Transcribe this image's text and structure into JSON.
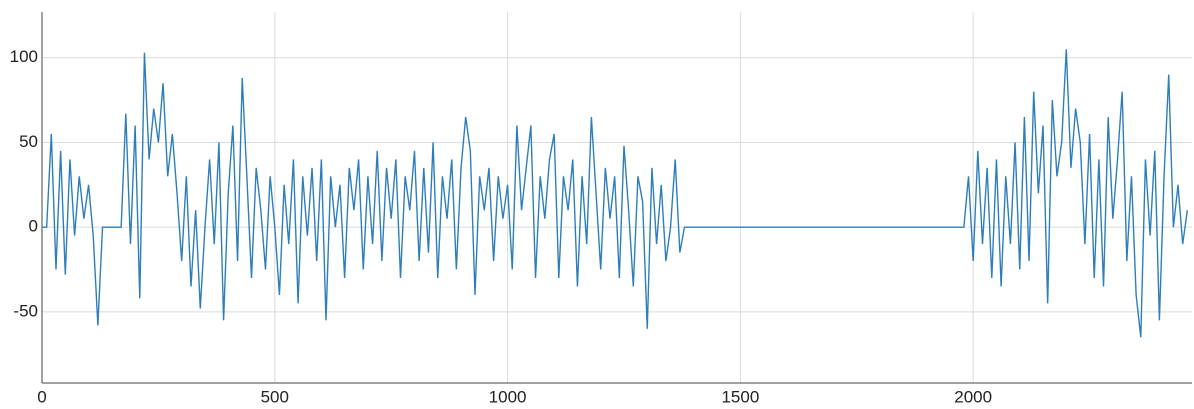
{
  "chart_data": {
    "type": "line",
    "x": [
      0,
      10,
      20,
      30,
      40,
      50,
      60,
      70,
      80,
      90,
      100,
      110,
      120,
      130,
      140,
      150,
      160,
      170,
      180,
      190,
      200,
      210,
      220,
      230,
      240,
      250,
      260,
      270,
      280,
      290,
      300,
      310,
      320,
      330,
      340,
      350,
      360,
      370,
      380,
      390,
      400,
      410,
      420,
      430,
      440,
      450,
      460,
      470,
      480,
      490,
      500,
      510,
      520,
      530,
      540,
      550,
      560,
      570,
      580,
      590,
      600,
      610,
      620,
      630,
      640,
      650,
      660,
      670,
      680,
      690,
      700,
      710,
      720,
      730,
      740,
      750,
      760,
      770,
      780,
      790,
      800,
      810,
      820,
      830,
      840,
      850,
      860,
      870,
      880,
      890,
      900,
      910,
      920,
      930,
      940,
      950,
      960,
      970,
      980,
      990,
      1000,
      1010,
      1020,
      1030,
      1040,
      1050,
      1060,
      1070,
      1080,
      1090,
      1100,
      1110,
      1120,
      1130,
      1140,
      1150,
      1160,
      1170,
      1180,
      1190,
      1200,
      1210,
      1220,
      1230,
      1240,
      1250,
      1260,
      1270,
      1280,
      1290,
      1300,
      1310,
      1320,
      1330,
      1340,
      1350,
      1360,
      1370,
      1380,
      1500,
      1700,
      1980,
      1990,
      2000,
      2010,
      2020,
      2030,
      2040,
      2050,
      2060,
      2070,
      2080,
      2090,
      2100,
      2110,
      2120,
      2130,
      2140,
      2150,
      2160,
      2170,
      2180,
      2190,
      2200,
      2210,
      2220,
      2230,
      2240,
      2250,
      2260,
      2270,
      2280,
      2290,
      2300,
      2310,
      2320,
      2330,
      2340,
      2350,
      2360,
      2370,
      2380,
      2390,
      2400,
      2410,
      2420,
      2430,
      2440,
      2450,
      2460
    ],
    "series": [
      {
        "color": "#2e7ebc",
        "values": [
          0,
          0,
          55,
          -25,
          45,
          -28,
          40,
          -5,
          30,
          5,
          25,
          -5,
          -58,
          0,
          0,
          0,
          0,
          0,
          67,
          -10,
          60,
          -42,
          103,
          40,
          70,
          50,
          85,
          30,
          55,
          20,
          -20,
          30,
          -35,
          10,
          -48,
          0,
          40,
          -10,
          50,
          -55,
          20,
          60,
          -20,
          88,
          30,
          -30,
          35,
          10,
          -25,
          30,
          0,
          -40,
          25,
          -10,
          40,
          -45,
          30,
          -5,
          35,
          -20,
          40,
          -55,
          30,
          0,
          25,
          -30,
          35,
          10,
          40,
          -25,
          30,
          -10,
          45,
          -20,
          35,
          5,
          40,
          -30,
          30,
          10,
          45,
          -20,
          35,
          -15,
          50,
          -30,
          30,
          5,
          40,
          -25,
          35,
          65,
          45,
          -40,
          30,
          10,
          35,
          -20,
          30,
          5,
          25,
          -25,
          60,
          10,
          35,
          60,
          -30,
          30,
          5,
          40,
          55,
          -30,
          30,
          10,
          40,
          -35,
          30,
          -10,
          65,
          20,
          -25,
          35,
          5,
          30,
          -30,
          48,
          10,
          -35,
          30,
          15,
          -60,
          35,
          -10,
          25,
          -20,
          0,
          40,
          -15,
          0,
          0,
          0,
          0,
          30,
          -20,
          45,
          -10,
          35,
          -30,
          40,
          -35,
          30,
          -10,
          50,
          -25,
          65,
          -20,
          80,
          20,
          60,
          -45,
          75,
          30,
          50,
          105,
          35,
          70,
          50,
          -10,
          55,
          -30,
          40,
          -35,
          65,
          5,
          40,
          80,
          -20,
          30,
          -40,
          -65,
          40,
          -5,
          45,
          -55,
          30,
          90,
          0,
          25,
          -10,
          10
        ]
      }
    ],
    "xlim": [
      0,
      2470
    ],
    "ylim": [
      -92,
      127
    ],
    "xticks": [
      0,
      500,
      1000,
      1500,
      2000
    ],
    "yticks": [
      -50,
      0,
      50,
      100
    ],
    "grid": true
  }
}
